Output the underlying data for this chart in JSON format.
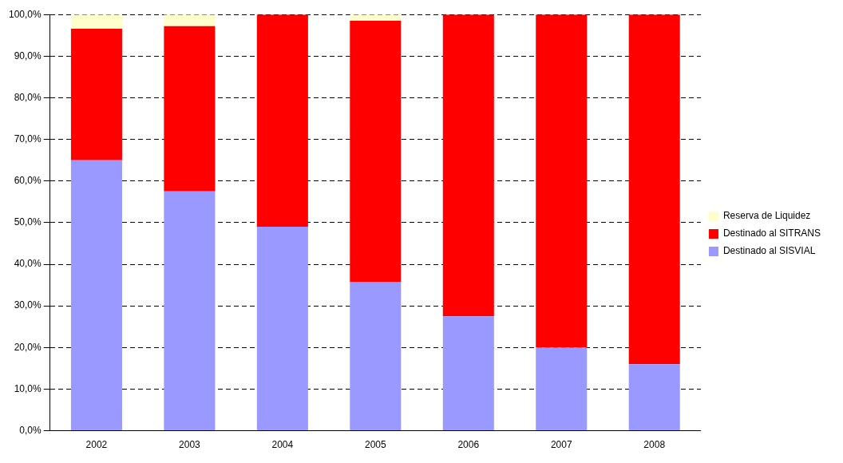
{
  "chart_data": {
    "type": "bar",
    "stacked": true,
    "categories": [
      "2002",
      "2003",
      "2004",
      "2005",
      "2006",
      "2007",
      "2008"
    ],
    "series": [
      {
        "name": "Destinado al SISVIAL",
        "color": "#9999ff",
        "values": [
          65,
          57.5,
          49,
          35.7,
          27.5,
          20,
          16
        ]
      },
      {
        "name": "Destinado al SITRANS",
        "color": "#ff0000",
        "values": [
          31.6,
          39.7,
          51,
          62.8,
          72.5,
          80,
          84
        ]
      },
      {
        "name": "Reserva de Liquidez",
        "color": "#ffffcc",
        "values": [
          3.4,
          2.8,
          null,
          1.5,
          null,
          null,
          null
        ]
      }
    ],
    "ylim": [
      0,
      100
    ],
    "yticks": [
      {
        "value": 0,
        "label": "0,0%"
      },
      {
        "value": 10,
        "label": "10,0%"
      },
      {
        "value": 20,
        "label": "20,0%"
      },
      {
        "value": 30,
        "label": "30,0%"
      },
      {
        "value": 40,
        "label": "40,0%"
      },
      {
        "value": 50,
        "label": "50,0%"
      },
      {
        "value": 60,
        "label": "60,0%"
      },
      {
        "value": 70,
        "label": "70,0%"
      },
      {
        "value": 80,
        "label": "80,0%"
      },
      {
        "value": 90,
        "label": "90,0%"
      },
      {
        "value": 100,
        "label": "100,0%"
      }
    ],
    "grid": "y",
    "legend": "right"
  }
}
